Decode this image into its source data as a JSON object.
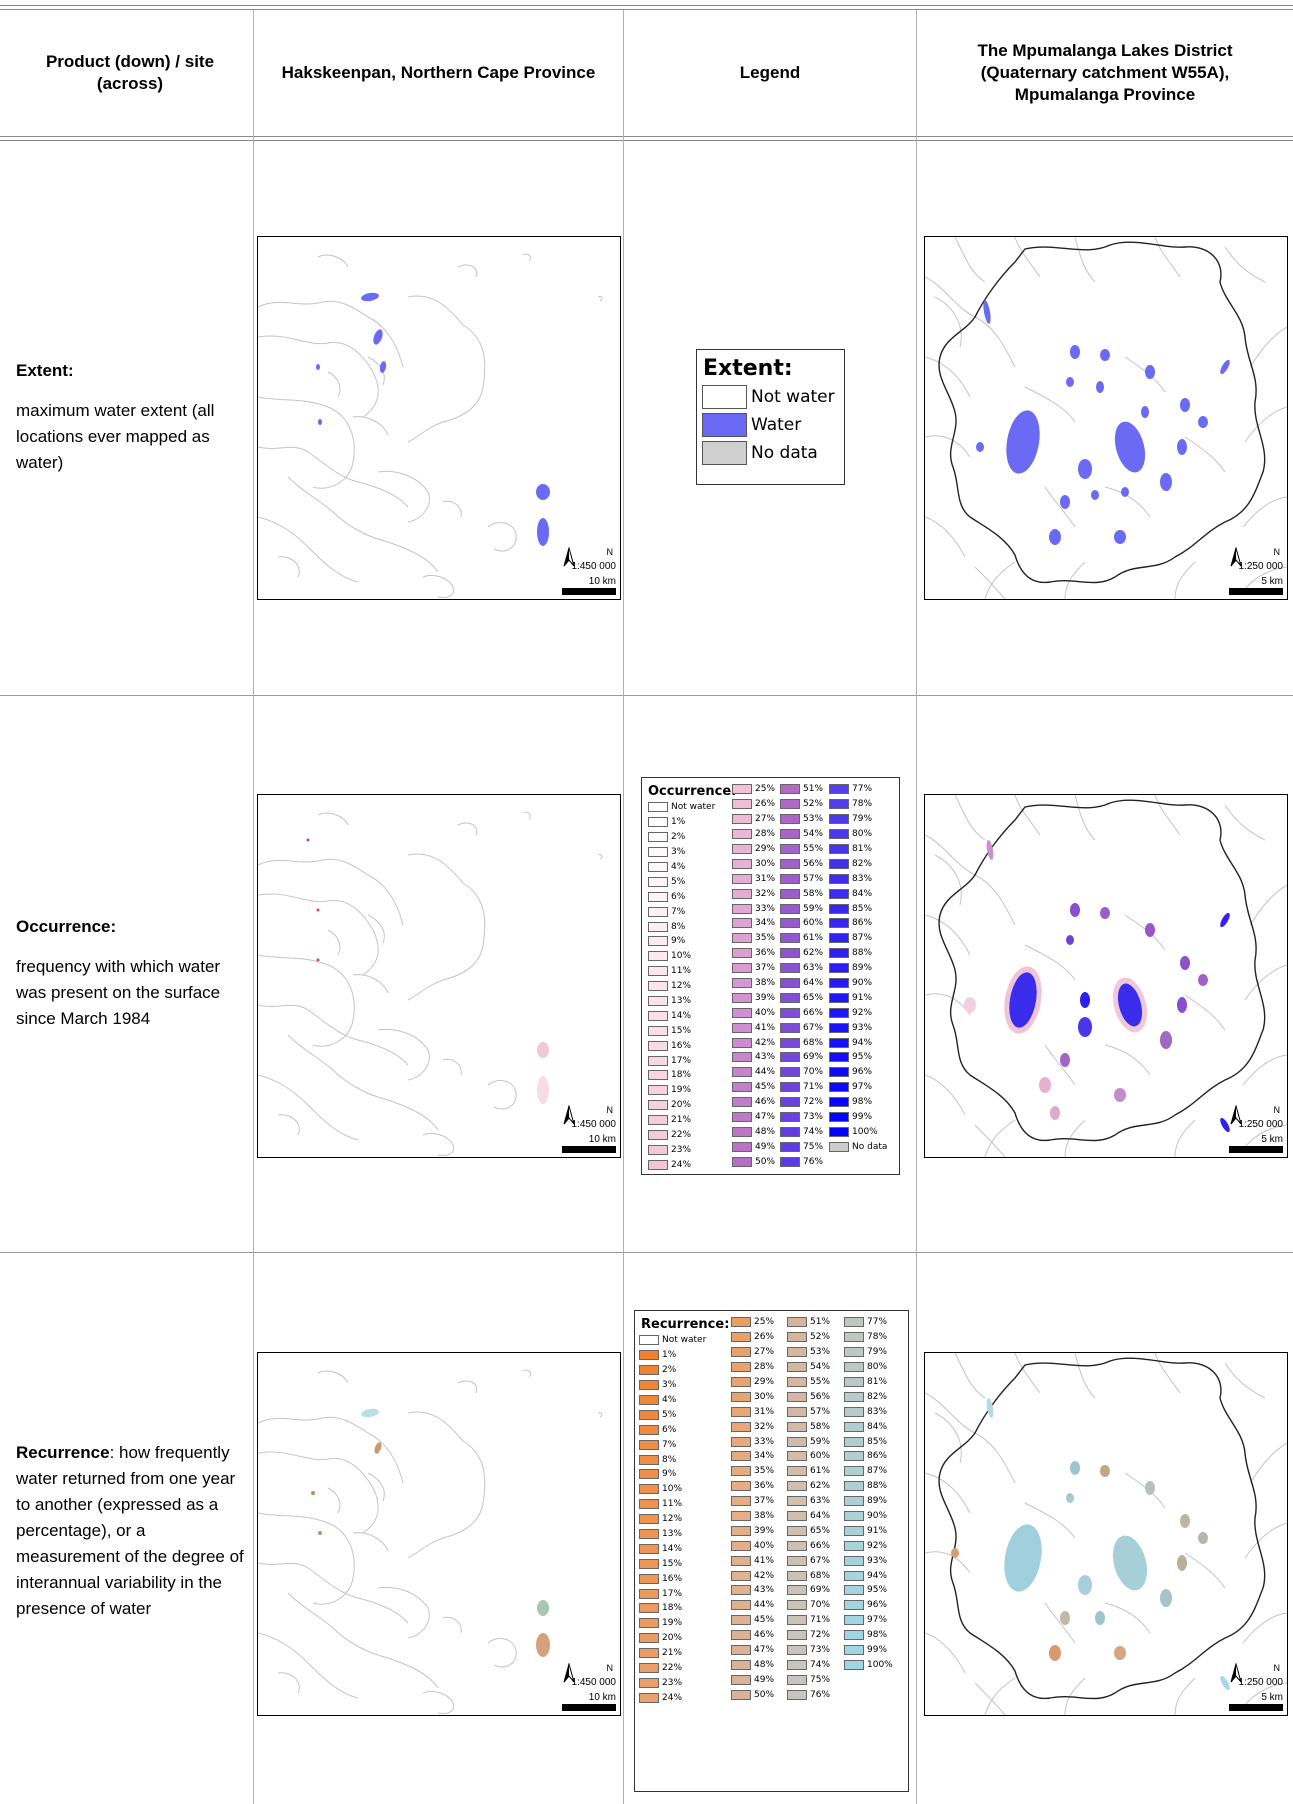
{
  "headers": {
    "col1": "Product (down) / site (across)",
    "col2": "Hakskeenpan, Northern Cape Province",
    "col3": "Legend",
    "col4": "The Mpumalanga Lakes District (Quaternary catchment W55A), Mpumalanga Province"
  },
  "rows": [
    {
      "title": "Extent:",
      "desc": "maximum water extent (all locations ever mapped as water)",
      "map_left": {
        "scale": "1:450 000",
        "bar": "10 km",
        "north": "N"
      },
      "map_right": {
        "scale": "1:250 000",
        "bar": "5 km",
        "north": "N"
      }
    },
    {
      "title": "Occurrence:",
      "desc": "frequency with which water was present on the surface since March 1984",
      "map_left": {
        "scale": "1:450 000",
        "bar": "10 km",
        "north": "N"
      },
      "map_right": {
        "scale": "1:250 000",
        "bar": "5 km",
        "north": "N"
      }
    },
    {
      "title": "Recurrence",
      "desc": ": how frequently water returned from one year to another (expressed as a percentage), or a measurement of the degree of interannual variability in the presence of water",
      "map_left": {
        "scale": "1:450 000",
        "bar": "10 km",
        "north": "N"
      },
      "map_right": {
        "scale": "1:250 000",
        "bar": "5 km",
        "north": "N"
      }
    }
  ],
  "legend_extent": {
    "title": "Extent:",
    "items": [
      {
        "label": "Not water",
        "color": "#ffffff"
      },
      {
        "label": "Water",
        "color": "#6a6af5"
      },
      {
        "label": "No data",
        "color": "#cfcfcf"
      }
    ]
  },
  "legend_occurrence": {
    "title": "Occurrence:",
    "not_water": "Not water",
    "no_data": "No data",
    "colors": {
      "low": "#fbe6ec",
      "mid": "#c88ad0",
      "high": "#3a2cf0",
      "end": "#0000ff",
      "nodata": "#cccccc"
    }
  },
  "legend_recurrence": {
    "title": "Recurrence:",
    "not_water": "Not water",
    "colors": {
      "low": "#f08a3c",
      "mid": "#d8b89c",
      "high": "#b9c7c2",
      "end": "#9fd6e6"
    }
  },
  "colors": {
    "water": "#6a6af5",
    "outline": "#c4c4c4",
    "catchment": "#222222"
  }
}
